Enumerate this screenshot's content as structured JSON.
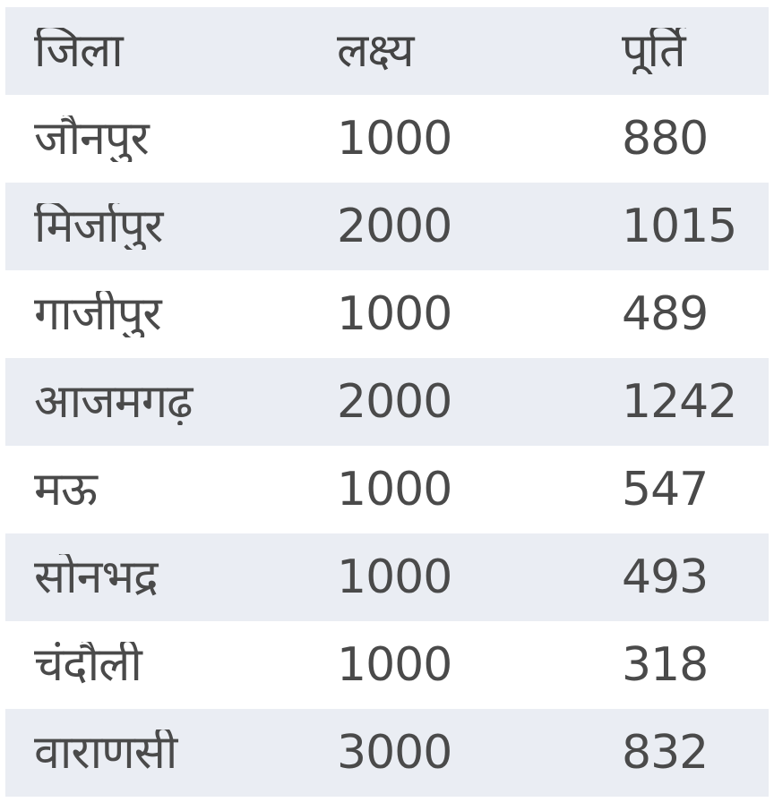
{
  "table": {
    "headers": [
      "जिला",
      "लक्ष्य",
      "पूर्ति"
    ],
    "rows": [
      {
        "district": "जौनपुर",
        "target": "1000",
        "achieved": "880"
      },
      {
        "district": "मिर्जापुर",
        "target": "2000",
        "achieved": "1015"
      },
      {
        "district": "गाजीपुर",
        "target": "1000",
        "achieved": "489"
      },
      {
        "district": "आजमगढ़",
        "target": "2000",
        "achieved": "1242"
      },
      {
        "district": "मऊ",
        "target": "1000",
        "achieved": "547"
      },
      {
        "district": "सोनभद्र",
        "target": "1000",
        "achieved": "493"
      },
      {
        "district": "चंदौली",
        "target": "1000",
        "achieved": "318"
      },
      {
        "district": "वाराणसी",
        "target": "3000",
        "achieved": "832"
      }
    ]
  },
  "colors": {
    "stripe": "#eaedf3",
    "text": "#4a4a4a"
  }
}
